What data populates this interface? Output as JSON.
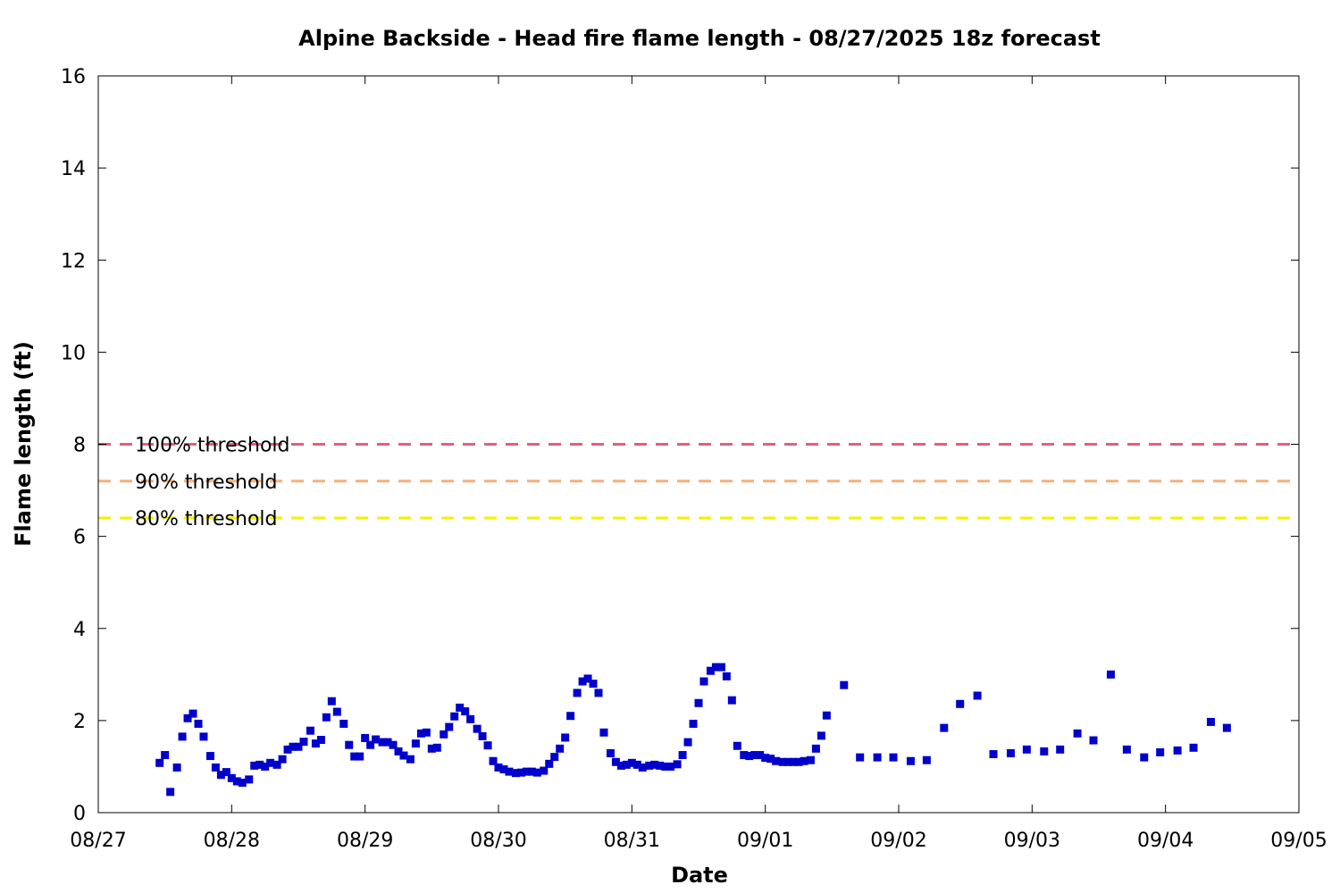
{
  "chart_data": {
    "type": "scatter",
    "title": "Alpine Backside - Head fire flame length - 08/27/2025 18z forecast",
    "xlabel": "Date",
    "ylabel": "Flame length (ft)",
    "x_ticks": [
      "08/27",
      "08/28",
      "08/29",
      "08/30",
      "08/31",
      "09/01",
      "09/02",
      "09/03",
      "09/04",
      "09/05"
    ],
    "y_ticks": [
      "0",
      "2",
      "4",
      "6",
      "8",
      "10",
      "12",
      "14",
      "16"
    ],
    "xlim_days": [
      0,
      9
    ],
    "ylim": [
      0,
      16
    ],
    "grid": false,
    "marker_color": "#0000cc",
    "thresholds": [
      {
        "label": "100% threshold",
        "value": 8.0,
        "color": "#e0607a"
      },
      {
        "label": "90% threshold",
        "value": 7.2,
        "color": "#f4b07a"
      },
      {
        "label": "80% threshold",
        "value": 6.4,
        "color": "#f2f200"
      }
    ],
    "series": [
      {
        "points": [
          [
            0.46,
            1.08
          ],
          [
            0.5,
            1.25
          ],
          [
            0.54,
            0.45
          ],
          [
            0.59,
            0.98
          ],
          [
            0.63,
            1.65
          ],
          [
            0.67,
            2.05
          ],
          [
            0.71,
            2.15
          ],
          [
            0.75,
            1.93
          ],
          [
            0.79,
            1.65
          ],
          [
            0.84,
            1.23
          ],
          [
            0.88,
            0.98
          ],
          [
            0.92,
            0.82
          ],
          [
            0.96,
            0.88
          ],
          [
            1.0,
            0.75
          ],
          [
            1.04,
            0.68
          ],
          [
            1.08,
            0.65
          ],
          [
            1.13,
            0.72
          ],
          [
            1.17,
            1.02
          ],
          [
            1.21,
            1.04
          ],
          [
            1.25,
            1.0
          ],
          [
            1.29,
            1.08
          ],
          [
            1.34,
            1.04
          ],
          [
            1.38,
            1.16
          ],
          [
            1.42,
            1.37
          ],
          [
            1.46,
            1.43
          ],
          [
            1.5,
            1.43
          ],
          [
            1.54,
            1.54
          ],
          [
            1.59,
            1.78
          ],
          [
            1.63,
            1.5
          ],
          [
            1.67,
            1.58
          ],
          [
            1.71,
            2.07
          ],
          [
            1.75,
            2.42
          ],
          [
            1.79,
            2.19
          ],
          [
            1.84,
            1.93
          ],
          [
            1.88,
            1.47
          ],
          [
            1.92,
            1.22
          ],
          [
            1.96,
            1.22
          ],
          [
            2.0,
            1.62
          ],
          [
            2.04,
            1.47
          ],
          [
            2.08,
            1.59
          ],
          [
            2.13,
            1.53
          ],
          [
            2.17,
            1.53
          ],
          [
            2.21,
            1.47
          ],
          [
            2.25,
            1.33
          ],
          [
            2.29,
            1.24
          ],
          [
            2.34,
            1.16
          ],
          [
            2.38,
            1.5
          ],
          [
            2.42,
            1.72
          ],
          [
            2.46,
            1.74
          ],
          [
            2.5,
            1.39
          ],
          [
            2.54,
            1.41
          ],
          [
            2.59,
            1.7
          ],
          [
            2.63,
            1.86
          ],
          [
            2.67,
            2.09
          ],
          [
            2.71,
            2.28
          ],
          [
            2.75,
            2.2
          ],
          [
            2.79,
            2.03
          ],
          [
            2.84,
            1.82
          ],
          [
            2.88,
            1.66
          ],
          [
            2.92,
            1.46
          ],
          [
            2.96,
            1.12
          ],
          [
            3.0,
            0.98
          ],
          [
            3.04,
            0.94
          ],
          [
            3.08,
            0.89
          ],
          [
            3.13,
            0.86
          ],
          [
            3.17,
            0.87
          ],
          [
            3.21,
            0.89
          ],
          [
            3.25,
            0.89
          ],
          [
            3.29,
            0.87
          ],
          [
            3.34,
            0.91
          ],
          [
            3.38,
            1.06
          ],
          [
            3.42,
            1.21
          ],
          [
            3.46,
            1.39
          ],
          [
            3.5,
            1.63
          ],
          [
            3.54,
            2.1
          ],
          [
            3.59,
            2.6
          ],
          [
            3.63,
            2.85
          ],
          [
            3.67,
            2.91
          ],
          [
            3.71,
            2.8
          ],
          [
            3.75,
            2.6
          ],
          [
            3.79,
            1.74
          ],
          [
            3.84,
            1.29
          ],
          [
            3.88,
            1.1
          ],
          [
            3.92,
            1.02
          ],
          [
            3.96,
            1.04
          ],
          [
            4.0,
            1.08
          ],
          [
            4.04,
            1.04
          ],
          [
            4.08,
            0.98
          ],
          [
            4.13,
            1.02
          ],
          [
            4.17,
            1.04
          ],
          [
            4.21,
            1.02
          ],
          [
            4.25,
            1.0
          ],
          [
            4.29,
            1.0
          ],
          [
            4.34,
            1.05
          ],
          [
            4.38,
            1.25
          ],
          [
            4.42,
            1.53
          ],
          [
            4.46,
            1.93
          ],
          [
            4.5,
            2.38
          ],
          [
            4.54,
            2.85
          ],
          [
            4.59,
            3.08
          ],
          [
            4.63,
            3.16
          ],
          [
            4.67,
            3.16
          ],
          [
            4.71,
            2.96
          ],
          [
            4.75,
            2.44
          ],
          [
            4.79,
            1.45
          ],
          [
            4.84,
            1.25
          ],
          [
            4.88,
            1.23
          ],
          [
            4.92,
            1.25
          ],
          [
            4.96,
            1.25
          ],
          [
            5.0,
            1.19
          ],
          [
            5.04,
            1.17
          ],
          [
            5.08,
            1.12
          ],
          [
            5.13,
            1.1
          ],
          [
            5.17,
            1.1
          ],
          [
            5.21,
            1.1
          ],
          [
            5.25,
            1.1
          ],
          [
            5.29,
            1.12
          ],
          [
            5.34,
            1.14
          ],
          [
            5.38,
            1.39
          ],
          [
            5.42,
            1.67
          ],
          [
            5.46,
            2.11
          ],
          [
            5.59,
            2.77
          ],
          [
            5.71,
            1.2
          ],
          [
            5.84,
            1.2
          ],
          [
            5.96,
            1.2
          ],
          [
            6.09,
            1.12
          ],
          [
            6.21,
            1.14
          ],
          [
            6.34,
            1.84
          ],
          [
            6.46,
            2.36
          ],
          [
            6.59,
            2.54
          ],
          [
            6.71,
            1.27
          ],
          [
            6.84,
            1.29
          ],
          [
            6.96,
            1.37
          ],
          [
            7.09,
            1.33
          ],
          [
            7.21,
            1.37
          ],
          [
            7.34,
            1.72
          ],
          [
            7.46,
            1.57
          ],
          [
            7.59,
            3.0
          ],
          [
            7.71,
            1.37
          ],
          [
            7.84,
            1.2
          ],
          [
            7.96,
            1.31
          ],
          [
            8.09,
            1.35
          ],
          [
            8.21,
            1.41
          ],
          [
            8.34,
            1.97
          ],
          [
            8.46,
            1.84
          ]
        ]
      }
    ]
  }
}
